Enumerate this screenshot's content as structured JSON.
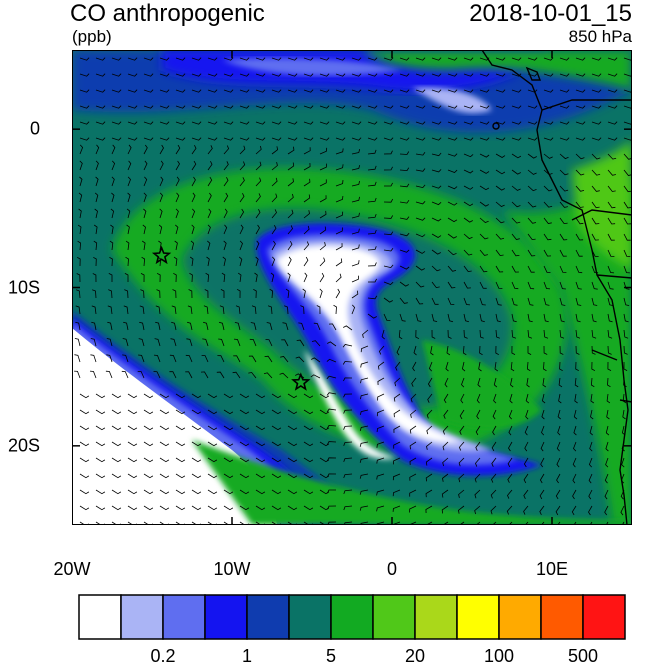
{
  "header": {
    "field_name": "CO anthropogenic",
    "units": "(ppb)",
    "datetime": "2018-10-01_15",
    "level": "850 hPa"
  },
  "map": {
    "lon_range": [
      -20,
      15
    ],
    "lat_range": [
      -25,
      5
    ],
    "lon_ticks": [
      {
        "value": -20,
        "label": "20W"
      },
      {
        "value": -10,
        "label": "10W"
      },
      {
        "value": 0,
        "label": "0"
      },
      {
        "value": 10,
        "label": "10E"
      }
    ],
    "lat_ticks": [
      {
        "value": 0,
        "label": "0"
      },
      {
        "value": -10,
        "label": "10S"
      },
      {
        "value": -20,
        "label": "20S"
      }
    ],
    "markers": [
      {
        "name": "star",
        "lon": -14.4,
        "lat": -8.0
      },
      {
        "name": "star",
        "lon": -5.7,
        "lat": -16.0
      }
    ]
  },
  "colorbar": {
    "colors": [
      "#ffffff",
      "#aab4f5",
      "#5f6ef0",
      "#1414f0",
      "#0f3caf",
      "#0a7366",
      "#12aa22",
      "#50c819",
      "#aad81a",
      "#ffff00",
      "#ffaa00",
      "#ff5a00",
      "#ff1414"
    ],
    "labels": [
      {
        "text": "0.2",
        "after_box": 2
      },
      {
        "text": "1",
        "after_box": 4
      },
      {
        "text": "5",
        "after_box": 6
      },
      {
        "text": "20",
        "after_box": 8
      },
      {
        "text": "100",
        "after_box": 10
      },
      {
        "text": "500",
        "after_box": 12
      }
    ]
  }
}
